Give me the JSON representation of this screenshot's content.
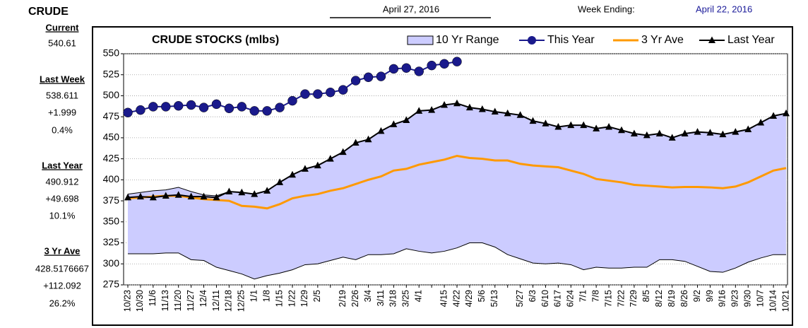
{
  "header": {
    "title": "CRUDE",
    "report_date": "April 27, 2016",
    "week_label": "Week Ending:",
    "week_date": "April 22, 2016"
  },
  "sidebar": [
    {
      "label": "Current",
      "lines": [
        "540.61"
      ]
    },
    {
      "label": "Last Week",
      "lines": [
        "538.611",
        "+1.999",
        "0.4%"
      ]
    },
    {
      "label": "Last Year",
      "lines": [
        "490.912",
        "+49.698",
        "10.1%"
      ]
    },
    {
      "label": "3 Yr Ave",
      "lines": [
        "428.5176667",
        "+112.092",
        "26.2%"
      ]
    }
  ],
  "chart_data": {
    "type": "line",
    "title": "CRUDE STOCKS (mlbs)",
    "categories": [
      "10/23",
      "10/30",
      "11/6",
      "11/13",
      "11/20",
      "11/27",
      "12/4",
      "12/11",
      "12/18",
      "12/25",
      "1/1",
      "1/8",
      "1/15",
      "1/22",
      "1/29",
      "2/5",
      null,
      "2/19",
      "2/26",
      "3/4",
      "3/11",
      "3/18",
      "3/25",
      "4/1",
      null,
      "4/15",
      "4/22",
      "4/29",
      "5/6",
      "5/13",
      null,
      "5/27",
      "6/3",
      "6/10",
      "6/17",
      "6/24",
      "7/1",
      "7/8",
      "7/15",
      "7/22",
      "7/29",
      "8/5",
      "8/12",
      "8/19",
      "8/26",
      "9/2",
      "9/9",
      "9/16",
      "9/23",
      "9/30",
      "10/7",
      "10/14",
      "10/21"
    ],
    "ylim": [
      275,
      550
    ],
    "yticks": [
      275,
      300,
      325,
      350,
      375,
      400,
      425,
      450,
      475,
      500,
      525,
      550
    ],
    "grid": true,
    "series": [
      {
        "name": "10 Yr Range",
        "color": "#ccccff",
        "upper": [
          383,
          385,
          387,
          388,
          391,
          386,
          382,
          381,
          386,
          385,
          383,
          387,
          397,
          406,
          413,
          417,
          425,
          433,
          444,
          448,
          458,
          466,
          471,
          482,
          483,
          489,
          491,
          486,
          484,
          481,
          479,
          477,
          470,
          467,
          463,
          465,
          465,
          461,
          463,
          459,
          455,
          453,
          455,
          450,
          455,
          457,
          456,
          454,
          457,
          460,
          468,
          476,
          479
        ],
        "lower": [
          312,
          312,
          312,
          313,
          313,
          305,
          304,
          296,
          292,
          288,
          282,
          286,
          289,
          293,
          299,
          300,
          304,
          308,
          305,
          311,
          311,
          312,
          318,
          315,
          313,
          315,
          319,
          325,
          325,
          320,
          311,
          306,
          301,
          300,
          301,
          299,
          293,
          296,
          295,
          295,
          296,
          296,
          305,
          305,
          303,
          297,
          291,
          290,
          295,
          302,
          307,
          311,
          311
        ]
      },
      {
        "name": "This Year",
        "color": "#1a1a8c",
        "marker": "circle",
        "values": [
          480,
          483,
          487,
          487,
          488,
          489,
          486,
          490,
          485,
          487,
          482,
          482,
          486,
          494,
          502,
          502,
          504,
          507,
          518,
          522,
          523,
          532,
          533,
          529,
          536,
          538,
          540.61,
          null,
          null,
          null,
          null,
          null,
          null,
          null,
          null,
          null,
          null,
          null,
          null,
          null,
          null,
          null,
          null,
          null,
          null,
          null,
          null,
          null,
          null,
          null,
          null,
          null,
          null
        ]
      },
      {
        "name": "3 Yr Ave",
        "color": "#ff9900",
        "marker": "none",
        "values": [
          378,
          379,
          380,
          381,
          381,
          379,
          377,
          376,
          375,
          369,
          368,
          366,
          371,
          378,
          381,
          383,
          387,
          390,
          395,
          400,
          404,
          411,
          413,
          418,
          421,
          424,
          428.5,
          426,
          425,
          423,
          423,
          419,
          417,
          416,
          415,
          411,
          407,
          401,
          399,
          397,
          394,
          393,
          392,
          391,
          391.5,
          391.5,
          391,
          390,
          392,
          397,
          404,
          411,
          414
        ]
      },
      {
        "name": "Last Year",
        "color": "#000000",
        "marker": "triangle",
        "values": [
          379,
          380,
          379,
          381,
          382,
          380,
          380,
          379,
          386,
          385,
          383,
          387,
          397,
          406,
          413,
          417,
          425,
          433,
          444,
          448,
          458,
          466,
          471,
          482,
          483,
          489,
          490.9,
          486,
          484,
          481,
          479,
          477,
          470,
          467,
          463,
          465,
          465,
          461,
          463,
          459,
          455,
          453,
          455,
          450,
          455,
          457,
          456,
          454,
          457,
          460,
          468,
          476,
          479
        ]
      }
    ]
  }
}
